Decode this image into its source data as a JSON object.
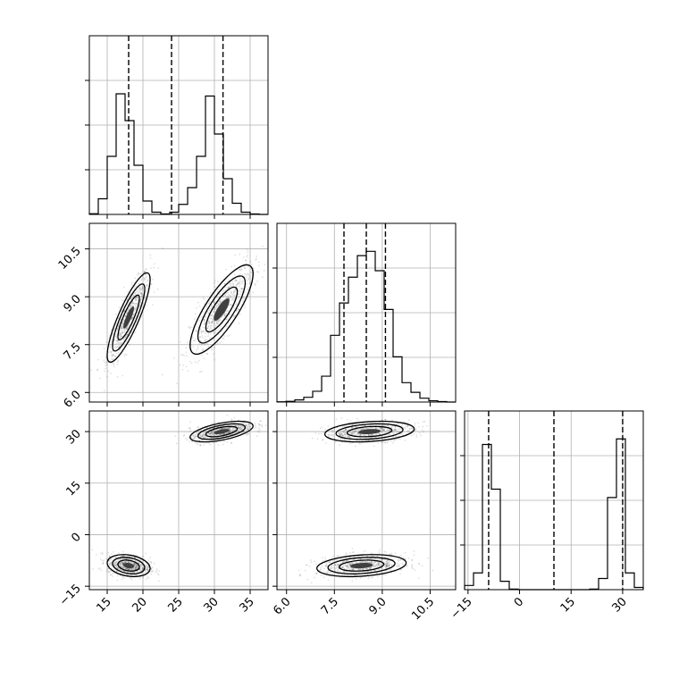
{
  "chart_data": {
    "type": "corner",
    "parameters": [
      "x",
      "y",
      "z"
    ],
    "colors": {
      "line": "#000000",
      "grid": "#b0b0b0",
      "fill_dark": "#404040",
      "fill_mid": "#8a8a8a",
      "fill_light": "#e8e8e8"
    },
    "ranges": {
      "x": [
        12.5,
        37.5
      ],
      "y": [
        5.7,
        11.3
      ],
      "z": [
        -16,
        36
      ]
    },
    "ticks": {
      "x": {
        "values": [
          15,
          20,
          25,
          30,
          35
        ],
        "labels": [
          "15",
          "20",
          "25",
          "30",
          "35"
        ]
      },
      "y": {
        "values": [
          6.0,
          7.5,
          9.0,
          10.5
        ],
        "labels": [
          "6.0",
          "7.5",
          "9.0",
          "10.5"
        ]
      },
      "z": {
        "values": [
          -15,
          0,
          15,
          30
        ],
        "labels": [
          "−15",
          "0",
          "15",
          "30"
        ]
      }
    },
    "histograms": {
      "x": {
        "bin_edges": [
          12.5,
          13.75,
          15,
          16.25,
          17.5,
          18.75,
          20,
          21.25,
          22.5,
          23.75,
          25,
          26.25,
          27.5,
          28.75,
          30,
          31.25,
          32.5,
          33.75,
          35,
          36.25,
          37.5
        ],
        "counts": [
          0.03,
          0.7,
          2.6,
          5.4,
          4.2,
          2.2,
          0.6,
          0.1,
          0.02,
          0.1,
          0.45,
          1.2,
          2.6,
          5.3,
          3.6,
          1.6,
          0.5,
          0.1,
          0.02,
          0
        ],
        "quantile_lines": [
          18.0,
          24.0,
          31.2
        ],
        "ymax": 8.0
      },
      "y": {
        "bin_edges": [
          5.7,
          5.98,
          6.26,
          6.54,
          6.82,
          7.1,
          7.38,
          7.66,
          7.94,
          8.22,
          8.5,
          8.78,
          9.06,
          9.34,
          9.62,
          9.9,
          10.18,
          10.46,
          10.74,
          11.02,
          11.3
        ],
        "counts": [
          0.01,
          0.03,
          0.1,
          0.22,
          0.5,
          1.2,
          3.1,
          4.6,
          5.8,
          6.8,
          7.0,
          6.1,
          4.3,
          2.1,
          0.9,
          0.45,
          0.18,
          0.06,
          0.02,
          0
        ],
        "quantile_lines": [
          7.8,
          8.5,
          9.1
        ],
        "ymax": 8.3
      },
      "z": {
        "bin_edges": [
          -16,
          -13.4,
          -10.8,
          -8.2,
          -5.6,
          -3,
          -0.4,
          2.2,
          4.8,
          7.4,
          10,
          12.6,
          15.2,
          17.8,
          20.4,
          23,
          25.6,
          28.2,
          30.8,
          33.4,
          36
        ],
        "counts": [
          0.15,
          0.6,
          5.2,
          3.6,
          0.3,
          0.02,
          0,
          0,
          0,
          0,
          0,
          0,
          0,
          0,
          0.02,
          0.4,
          3.3,
          5.4,
          0.6,
          0.08
        ],
        "quantile_lines": [
          -9.0,
          10.0,
          30.0
        ],
        "ymax": 6.4
      }
    },
    "modes": [
      {
        "x": 18.0,
        "y": 8.35,
        "z": -9.0,
        "sx": 1.5,
        "sy": 0.7,
        "sz": 1.6,
        "rho_xy": 0.85,
        "rho_xz": -0.25,
        "rho_yz": 0.25
      },
      {
        "x": 31.0,
        "y": 8.6,
        "z": 30.0,
        "sx": 2.2,
        "sy": 0.7,
        "sz": 1.5,
        "rho_xy": 0.8,
        "rho_xz": 0.55,
        "rho_yz": 0.25
      }
    ]
  }
}
